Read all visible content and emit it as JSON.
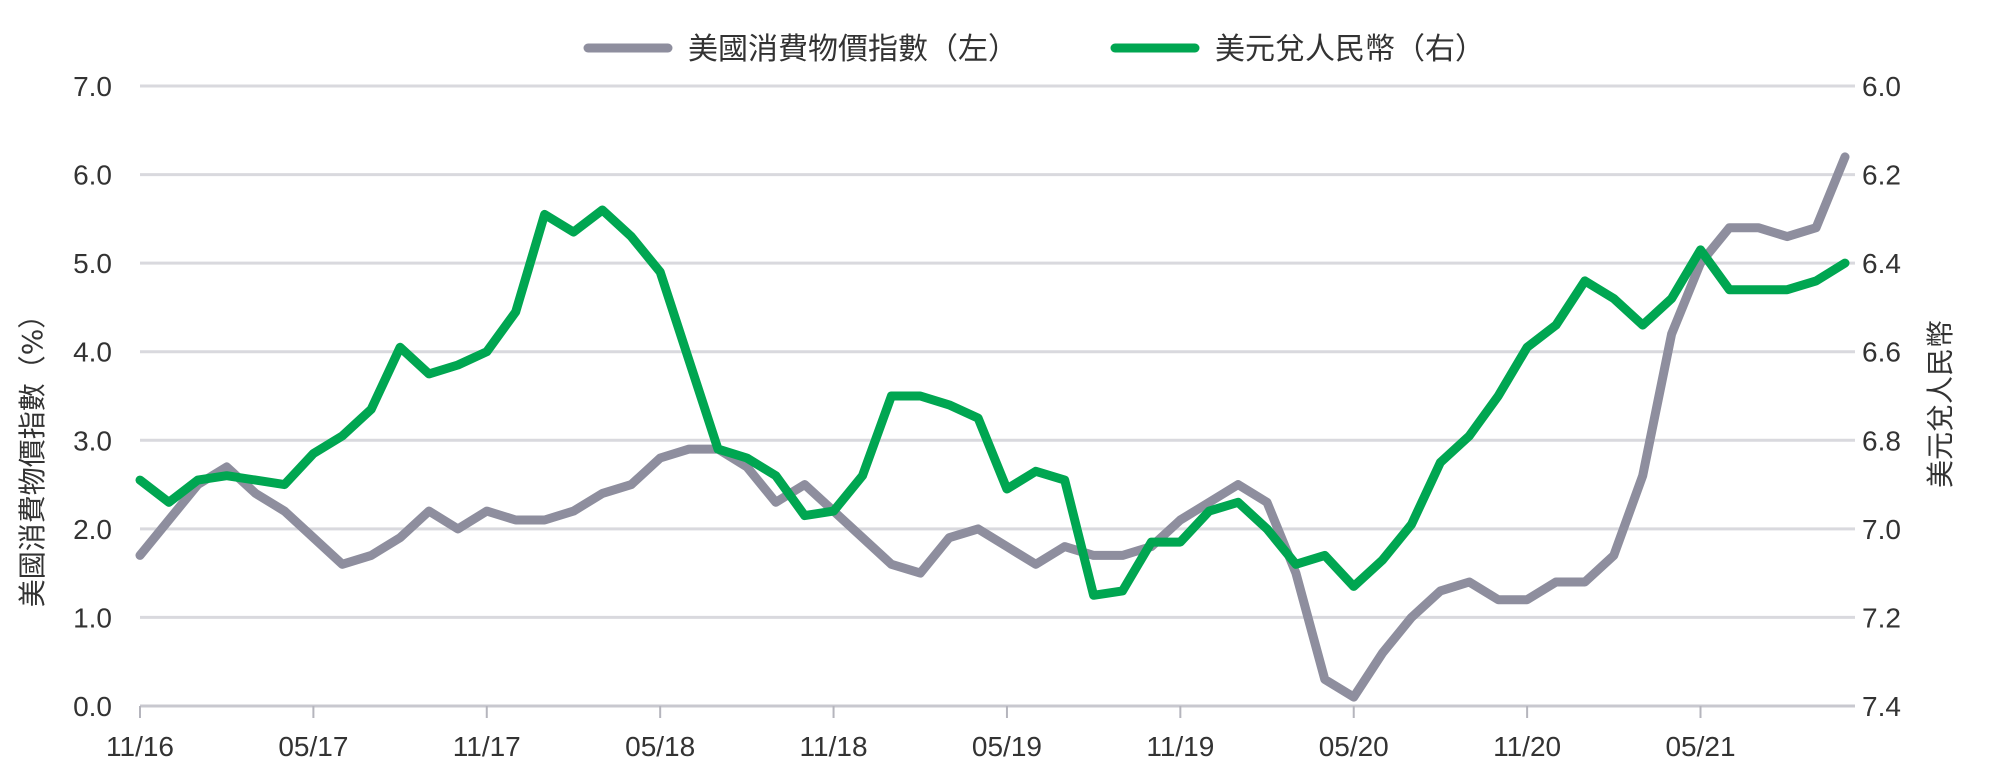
{
  "chart_data": {
    "type": "line",
    "title": "",
    "legend": {
      "position": "top-center",
      "entries": [
        "美國消費物價指數（左）",
        "美元兌人民幣（右）"
      ]
    },
    "ylabel_left": "美國消費物價指數（%）",
    "ylabel_right": "美元兌人民幣",
    "y_left": {
      "min": 0.0,
      "max": 7.0,
      "ticks": [
        "0.0",
        "1.0",
        "2.0",
        "3.0",
        "4.0",
        "5.0",
        "6.0",
        "7.0"
      ]
    },
    "y_right": {
      "min": 6.0,
      "max": 7.4,
      "inverted": true,
      "ticks": [
        "6.0",
        "6.2",
        "6.4",
        "6.6",
        "6.8",
        "7.0",
        "7.2",
        "7.4"
      ]
    },
    "x_tick_labels": [
      "11/16",
      "05/17",
      "11/17",
      "05/18",
      "11/18",
      "05/19",
      "11/19",
      "05/20",
      "11/20",
      "05/21"
    ],
    "grid": true,
    "x": [
      "11/16",
      "12/16",
      "01/17",
      "02/17",
      "03/17",
      "04/17",
      "05/17",
      "06/17",
      "07/17",
      "08/17",
      "09/17",
      "10/17",
      "11/17",
      "12/17",
      "01/18",
      "02/18",
      "03/18",
      "04/18",
      "05/18",
      "06/18",
      "07/18",
      "08/18",
      "09/18",
      "10/18",
      "11/18",
      "12/18",
      "01/19",
      "02/19",
      "03/19",
      "04/19",
      "05/19",
      "06/19",
      "07/19",
      "08/19",
      "09/19",
      "10/19",
      "11/19",
      "12/19",
      "01/20",
      "02/20",
      "03/20",
      "04/20",
      "05/20",
      "06/20",
      "07/20",
      "08/20",
      "09/20",
      "10/20",
      "11/20",
      "12/20",
      "01/21",
      "02/21",
      "03/21",
      "04/21",
      "05/21",
      "06/21",
      "07/21",
      "08/21",
      "09/21",
      "10/21"
    ],
    "series": [
      {
        "name": "美國消費物價指數（左）",
        "axis": "left",
        "color": "#8e8e9e",
        "values": [
          1.7,
          2.1,
          2.5,
          2.7,
          2.4,
          2.2,
          1.9,
          1.6,
          1.7,
          1.9,
          2.2,
          2.0,
          2.2,
          2.1,
          2.1,
          2.2,
          2.4,
          2.5,
          2.8,
          2.9,
          2.9,
          2.7,
          2.3,
          2.5,
          2.2,
          1.9,
          1.6,
          1.5,
          1.9,
          2.0,
          1.8,
          1.6,
          1.8,
          1.7,
          1.7,
          1.8,
          2.1,
          2.3,
          2.5,
          2.3,
          1.5,
          0.3,
          0.1,
          0.6,
          1.0,
          1.3,
          1.4,
          1.2,
          1.2,
          1.4,
          1.4,
          1.7,
          2.6,
          4.2,
          5.0,
          5.4,
          5.4,
          5.3,
          5.4,
          6.2
        ]
      },
      {
        "name": "美元兌人民幣（右）",
        "axis": "right",
        "color": "#00a651",
        "values": [
          6.89,
          6.94,
          6.89,
          6.88,
          6.89,
          6.9,
          6.83,
          6.79,
          6.73,
          6.59,
          6.65,
          6.63,
          6.6,
          6.51,
          6.29,
          6.33,
          6.28,
          6.34,
          6.42,
          6.62,
          6.82,
          6.84,
          6.88,
          6.97,
          6.96,
          6.88,
          6.7,
          6.7,
          6.72,
          6.75,
          6.91,
          6.87,
          6.89,
          7.15,
          7.14,
          7.03,
          7.03,
          6.96,
          6.94,
          7.0,
          7.08,
          7.06,
          7.13,
          7.07,
          6.99,
          6.85,
          6.79,
          6.7,
          6.59,
          6.54,
          6.44,
          6.48,
          6.54,
          6.48,
          6.37,
          6.46,
          6.46,
          6.46,
          6.44,
          6.4
        ]
      }
    ]
  }
}
